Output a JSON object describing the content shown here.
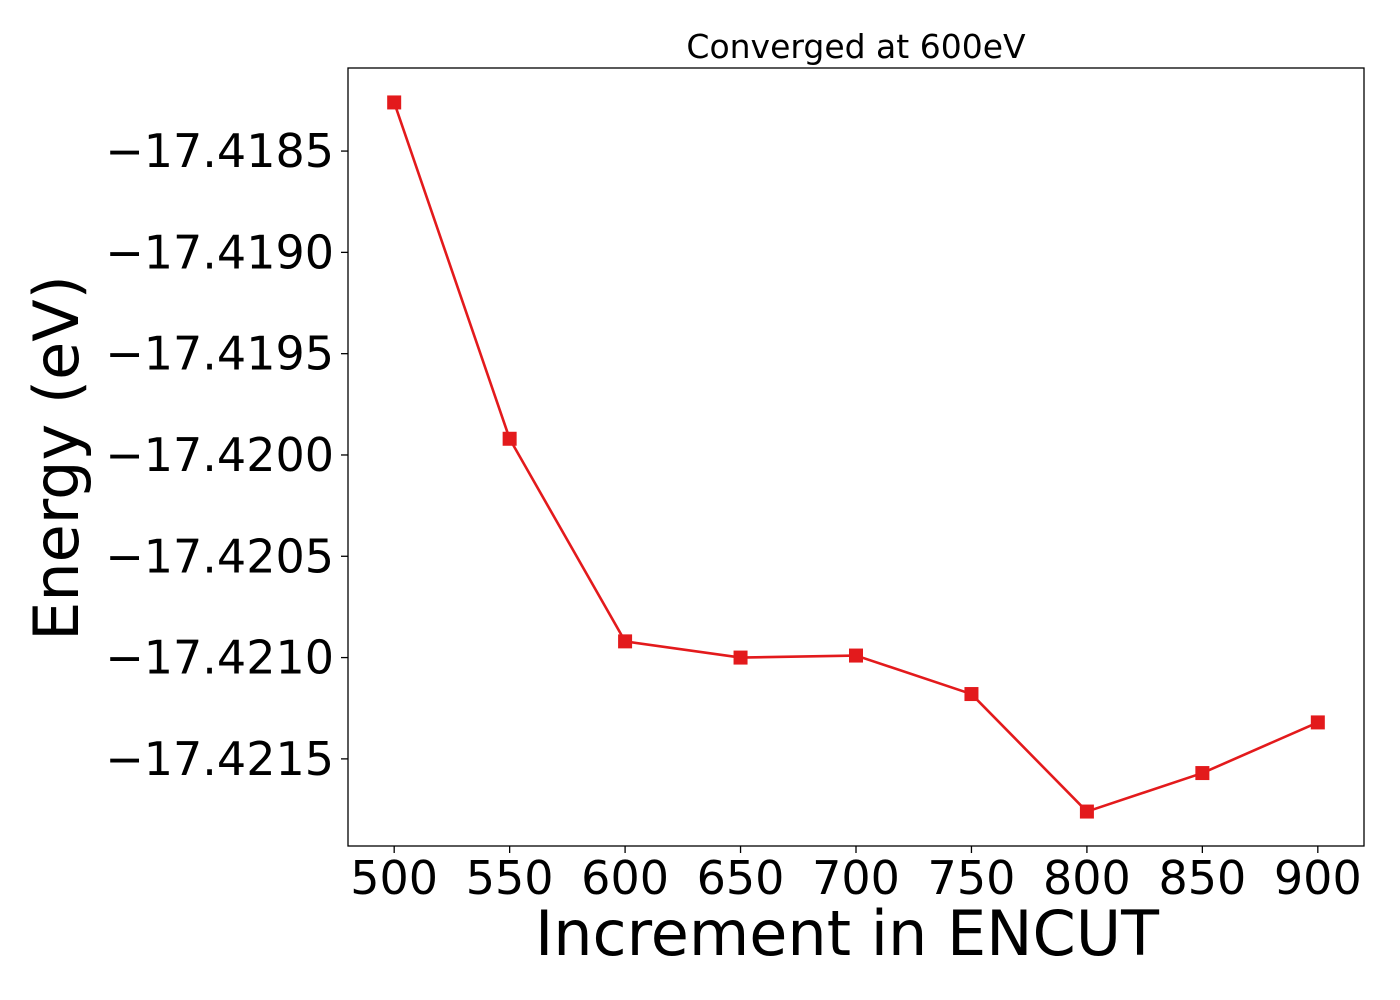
{
  "chart_data": {
    "type": "line",
    "title": "Converged at 600eV",
    "xlabel": "Increment in ENCUT",
    "ylabel": "Energy (eV)",
    "x": [
      500,
      550,
      600,
      650,
      700,
      750,
      800,
      850,
      900
    ],
    "series": [
      {
        "values": [
          -17.41826,
          -17.41992,
          -17.42092,
          -17.421,
          -17.42099,
          -17.42118,
          -17.42176,
          -17.42157,
          -17.42132
        ],
        "color": "#e31a1c",
        "marker": "square"
      }
    ],
    "xticks": [
      500,
      550,
      600,
      650,
      700,
      750,
      800,
      850,
      900
    ],
    "xtick_labels": [
      "500",
      "550",
      "600",
      "650",
      "700",
      "750",
      "800",
      "850",
      "900"
    ],
    "yticks": [
      -17.4185,
      -17.419,
      -17.4195,
      -17.42,
      -17.4205,
      -17.421,
      -17.4215
    ],
    "ytick_labels": [
      "−17.4185",
      "−17.4190",
      "−17.4195",
      "−17.4200",
      "−17.4205",
      "−17.4210",
      "−17.4215"
    ],
    "xlim": [
      480,
      920
    ],
    "ylim": [
      -17.42193,
      -17.41809
    ],
    "grid": false,
    "legend": "none"
  }
}
